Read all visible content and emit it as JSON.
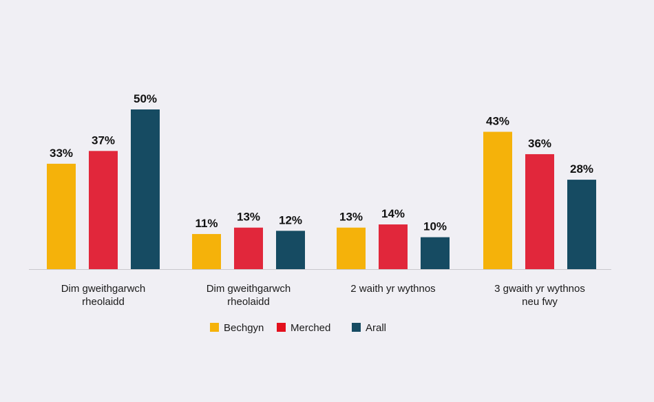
{
  "chart_data": {
    "type": "bar",
    "title": "",
    "xlabel": "",
    "ylabel": "",
    "ylim": [
      0,
      55
    ],
    "grid": false,
    "legend_position": "bottom-center",
    "categories": [
      [
        "Dim gweithgarwch",
        "rheolaidd"
      ],
      [
        "Dim gweithgarwch",
        "rheolaidd"
      ],
      [
        "2 waith yr wythnos"
      ],
      [
        "3 gwaith yr wythnos",
        "neu fwy"
      ]
    ],
    "series": [
      {
        "name": "Bechgyn",
        "color": "#F5B20A",
        "values": [
          33,
          11,
          13,
          43
        ],
        "labels": [
          "33%",
          "11%",
          "13%",
          "43%"
        ]
      },
      {
        "name": "Merched",
        "color": "#E1273B",
        "values": [
          37,
          13,
          14,
          36
        ],
        "labels": [
          "37%",
          "13%",
          "14%",
          "36%"
        ]
      },
      {
        "name": "Arall",
        "color": "#164B62",
        "values": [
          50,
          12,
          10,
          28
        ],
        "labels": [
          "50%",
          "12%",
          "10%",
          "28%"
        ]
      }
    ]
  },
  "legend": {
    "items": [
      {
        "label": "Bechgyn",
        "color": "#F5B20A"
      },
      {
        "label": "Merched",
        "color": "#E3101D"
      },
      {
        "label": "Arall",
        "color": "#164B62"
      }
    ]
  },
  "colors": {
    "background": "#F0EFF4",
    "axis": "#C8C8CC"
  }
}
